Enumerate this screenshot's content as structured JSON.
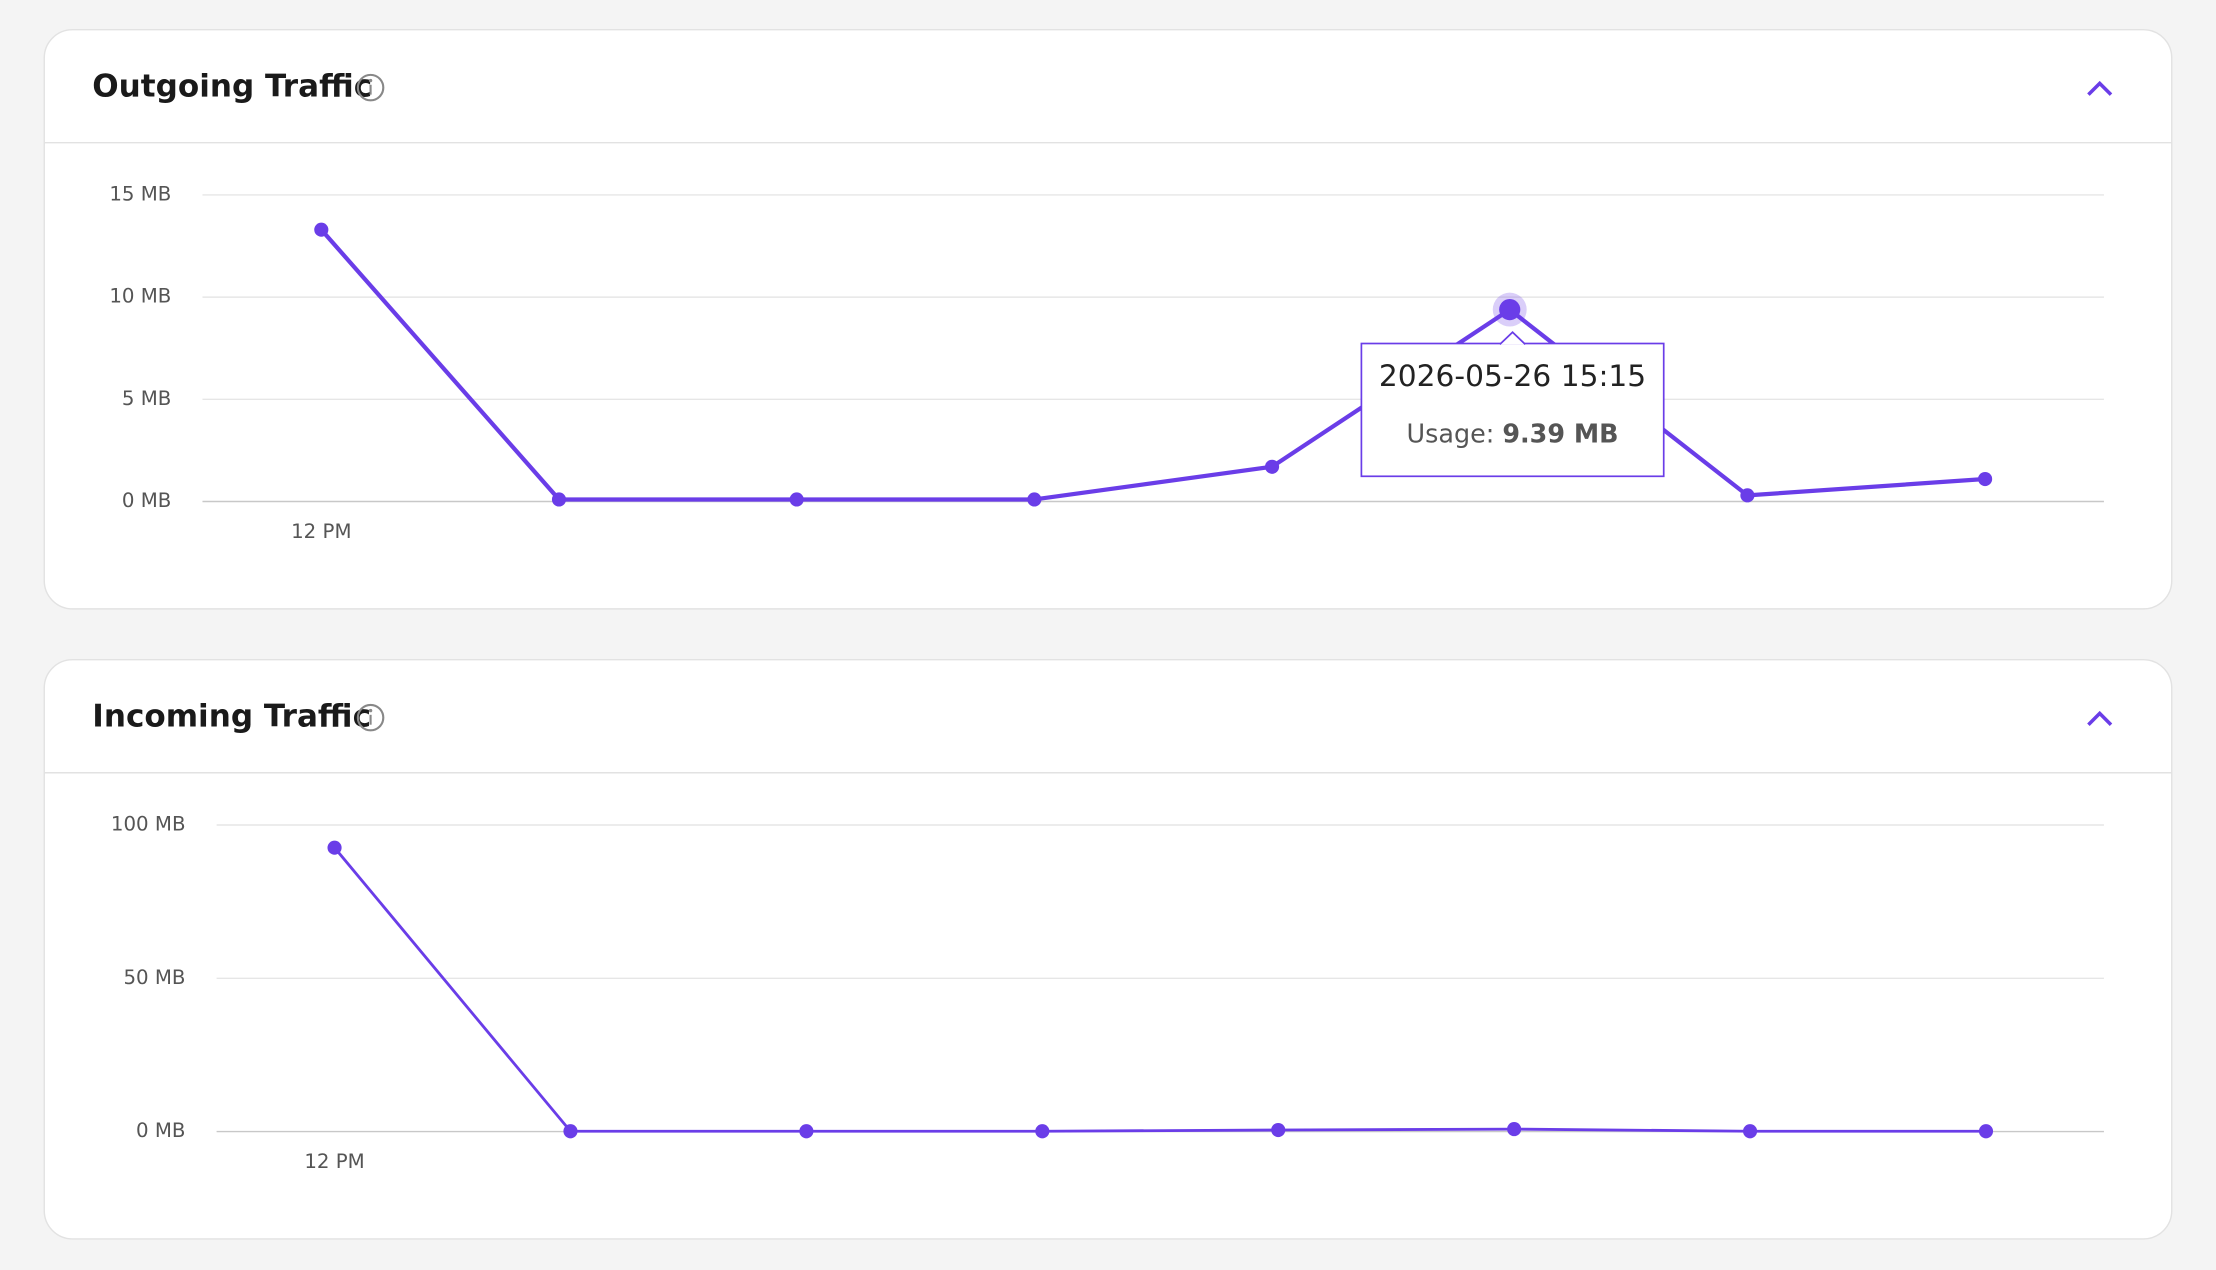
{
  "chart_data": [
    {
      "type": "line",
      "title": "Outgoing Traffic",
      "categories": [
        "12 PM",
        null,
        null,
        null,
        null,
        null,
        null,
        null
      ],
      "values": [
        13.3,
        0.1,
        0.1,
        0.1,
        1.7,
        9.39,
        0.3,
        1.1
      ],
      "value_labels": [
        null,
        null,
        null,
        null,
        null,
        "9.39 MB",
        null,
        null
      ],
      "color": "#6a3de8",
      "ylim": [
        0,
        15
      ],
      "yticks": [
        {
          "value": 0,
          "label": "0 MB"
        },
        {
          "value": 5,
          "label": "5 MB"
        },
        {
          "value": 10,
          "label": "10 MB"
        },
        {
          "value": 15,
          "label": "15 MB"
        }
      ],
      "grid": true,
      "tooltip": {
        "title": "2026-05-26 15:15",
        "label": "Usage:"
      }
    },
    {
      "type": "line",
      "title": "Incoming Traffic",
      "categories": [
        "12 PM",
        null,
        null,
        null,
        null,
        null,
        null,
        null
      ],
      "values": [
        92.6,
        0.1,
        0.1,
        0.1,
        0.5,
        0.8,
        0.1,
        0.1
      ],
      "color": "#6a3de8",
      "ylim": [
        0,
        100
      ],
      "yticks": [
        {
          "value": 0,
          "label": "0 MB"
        },
        {
          "value": 50,
          "label": "50 MB"
        },
        {
          "value": 100,
          "label": "100 MB"
        }
      ],
      "grid": true
    }
  ]
}
